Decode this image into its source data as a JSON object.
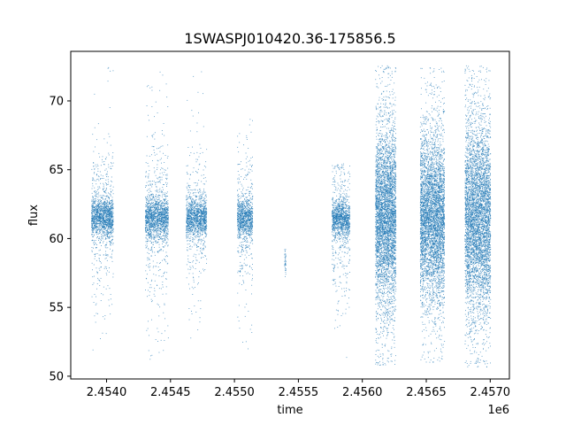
{
  "chart_data": {
    "type": "scatter",
    "title": "1SWASPJ010420.36-175856.5",
    "xlabel": "time",
    "ylabel": "flux",
    "x_offset_label": "1e6",
    "xlim": [
      2453720,
      2457150
    ],
    "ylim": [
      49.8,
      73.6
    ],
    "x_ticks": [
      2454000,
      2454500,
      2455000,
      2455500,
      2456000,
      2456500,
      2457000
    ],
    "x_tick_labels": [
      "2.4540",
      "2.4545",
      "2.4550",
      "2.4555",
      "2.4560",
      "2.4565",
      "2.4570"
    ],
    "y_ticks": [
      50,
      55,
      60,
      65,
      70
    ],
    "y_tick_labels": [
      "50",
      "55",
      "60",
      "65",
      "70"
    ],
    "grid": false,
    "marker_color": "#1f77b4",
    "series": [
      {
        "clusters": [
          {
            "x_start": 2453880,
            "x_end": 2454050,
            "center": 61.6,
            "core": 0.7,
            "spread": 1.6,
            "ymin": 51.0,
            "ymax": 72.5,
            "n": 1600
          },
          {
            "x_start": 2454300,
            "x_end": 2454480,
            "center": 61.5,
            "core": 0.8,
            "spread": 1.8,
            "ymin": 50.6,
            "ymax": 72.4,
            "n": 1700
          },
          {
            "x_start": 2454620,
            "x_end": 2454780,
            "center": 61.5,
            "core": 0.7,
            "spread": 1.5,
            "ymin": 52.5,
            "ymax": 72.3,
            "n": 1400
          },
          {
            "x_start": 2455020,
            "x_end": 2455140,
            "center": 61.5,
            "core": 0.7,
            "spread": 1.6,
            "ymin": 51.2,
            "ymax": 69.0,
            "n": 1100
          },
          {
            "x_start": 2455390,
            "x_end": 2455400,
            "center": 58.2,
            "core": 0.4,
            "spread": 0.6,
            "ymin": 57.2,
            "ymax": 59.5,
            "n": 40
          },
          {
            "x_start": 2455760,
            "x_end": 2455900,
            "center": 61.5,
            "core": 0.7,
            "spread": 1.6,
            "ymin": 51.0,
            "ymax": 65.5,
            "n": 1300
          },
          {
            "x_start": 2456100,
            "x_end": 2456260,
            "center": 61.5,
            "core": 3.0,
            "spread": 3.0,
            "ymin": 50.7,
            "ymax": 72.6,
            "n": 4200
          },
          {
            "x_start": 2456450,
            "x_end": 2456640,
            "center": 61.5,
            "core": 2.8,
            "spread": 2.8,
            "ymin": 51.0,
            "ymax": 72.5,
            "n": 4500
          },
          {
            "x_start": 2456800,
            "x_end": 2457000,
            "center": 61.5,
            "core": 3.2,
            "spread": 3.2,
            "ymin": 50.7,
            "ymax": 72.6,
            "n": 4800
          }
        ]
      }
    ]
  }
}
